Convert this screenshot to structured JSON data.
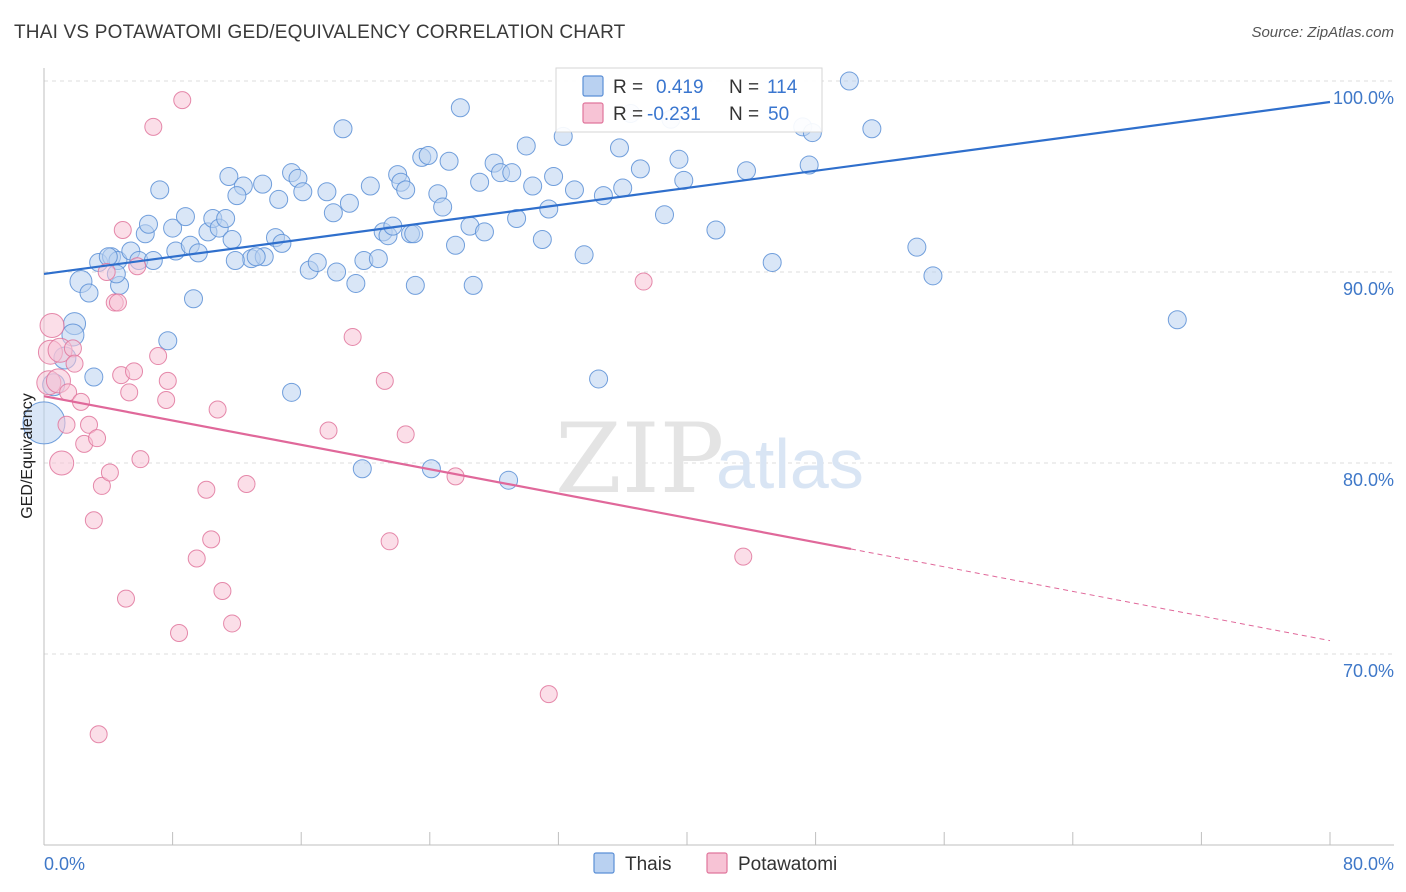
{
  "title": "THAI VS POTAWATOMI GED/EQUIVALENCY CORRELATION CHART",
  "source": "Source: ZipAtlas.com",
  "watermark": {
    "zip": "ZIP",
    "atlas": "atlas"
  },
  "legend": {
    "r_label": "R =",
    "n_label": "N =",
    "series": [
      {
        "name": "Thais",
        "r": "0.419",
        "n": "114",
        "color": "#5b8fd6",
        "fill": "#b9d1f1"
      },
      {
        "name": "Potawatomi",
        "r": "-0.231",
        "n": "50",
        "color": "#e0769c",
        "fill": "#f7c3d5"
      }
    ]
  },
  "chart_data": {
    "type": "scatter",
    "title": "THAI VS POTAWATOMI GED/EQUIVALENCY CORRELATION CHART",
    "xlabel": "",
    "ylabel": "GED/Equivalency",
    "xlim": [
      0,
      80
    ],
    "ylim": [
      60.2,
      101.5
    ],
    "x_tick_labels": [
      "0.0%",
      "80.0%"
    ],
    "y_ticks": [
      {
        "value": 100,
        "label": "100.0%"
      },
      {
        "value": 90,
        "label": "90.0%"
      },
      {
        "value": 80,
        "label": "80.0%"
      },
      {
        "value": 70,
        "label": "70.0%"
      }
    ],
    "grid": true,
    "legend_position": "top-center",
    "series": [
      {
        "name": "Thais",
        "color": "#3a76cf",
        "trend": {
          "x0": 0,
          "y0": 89.9,
          "x1": 80,
          "y1": 98.9
        },
        "points": [
          [
            0.0,
            82.1
          ],
          [
            0.6,
            84.1
          ],
          [
            1.3,
            85.5
          ],
          [
            1.9,
            87.3
          ],
          [
            1.8,
            86.7
          ],
          [
            2.3,
            89.5
          ],
          [
            2.8,
            88.9
          ],
          [
            3.1,
            84.5
          ],
          [
            3.4,
            90.5
          ],
          [
            4.2,
            90.8
          ],
          [
            4.6,
            90.6
          ],
          [
            4.7,
            89.3
          ],
          [
            4.5,
            89.9
          ],
          [
            5.4,
            91.1
          ],
          [
            5.9,
            90.6
          ],
          [
            6.3,
            92.0
          ],
          [
            6.5,
            92.5
          ],
          [
            7.2,
            94.3
          ],
          [
            7.7,
            86.4
          ],
          [
            8.0,
            92.3
          ],
          [
            8.2,
            91.1
          ],
          [
            8.8,
            92.9
          ],
          [
            9.1,
            91.4
          ],
          [
            9.3,
            88.6
          ],
          [
            9.6,
            91.0
          ],
          [
            10.2,
            92.1
          ],
          [
            10.5,
            92.8
          ],
          [
            10.9,
            92.3
          ],
          [
            11.3,
            92.8
          ],
          [
            11.5,
            95.0
          ],
          [
            11.7,
            91.7
          ],
          [
            12.4,
            94.5
          ],
          [
            12.0,
            94.0
          ],
          [
            12.9,
            90.7
          ],
          [
            13.7,
            90.8
          ],
          [
            13.6,
            94.6
          ],
          [
            14.4,
            91.8
          ],
          [
            14.8,
            91.5
          ],
          [
            14.6,
            93.8
          ],
          [
            15.4,
            95.2
          ],
          [
            15.8,
            94.9
          ],
          [
            16.1,
            94.2
          ],
          [
            16.5,
            90.1
          ],
          [
            17.0,
            90.5
          ],
          [
            17.6,
            94.2
          ],
          [
            18.0,
            93.1
          ],
          [
            18.2,
            90.0
          ],
          [
            18.6,
            97.5
          ],
          [
            19.0,
            93.6
          ],
          [
            19.4,
            89.4
          ],
          [
            19.9,
            90.6
          ],
          [
            20.3,
            94.5
          ],
          [
            20.8,
            90.7
          ],
          [
            21.1,
            92.1
          ],
          [
            21.4,
            91.9
          ],
          [
            21.7,
            92.4
          ],
          [
            22.0,
            95.1
          ],
          [
            22.2,
            94.7
          ],
          [
            22.5,
            94.3
          ],
          [
            22.8,
            92.0
          ],
          [
            23.1,
            89.3
          ],
          [
            23.5,
            96.0
          ],
          [
            23.9,
            96.1
          ],
          [
            24.5,
            94.1
          ],
          [
            24.8,
            93.4
          ],
          [
            25.2,
            95.8
          ],
          [
            25.6,
            91.4
          ],
          [
            25.9,
            98.6
          ],
          [
            26.5,
            92.4
          ],
          [
            26.7,
            89.3
          ],
          [
            27.1,
            94.7
          ],
          [
            27.4,
            92.1
          ],
          [
            28.0,
            95.7
          ],
          [
            28.4,
            95.2
          ],
          [
            29.1,
            95.2
          ],
          [
            29.4,
            92.8
          ],
          [
            30.0,
            96.6
          ],
          [
            30.4,
            94.5
          ],
          [
            31.4,
            93.3
          ],
          [
            31.0,
            91.7
          ],
          [
            31.7,
            95.0
          ],
          [
            32.3,
            97.1
          ],
          [
            33.0,
            94.3
          ],
          [
            33.6,
            90.9
          ],
          [
            34.5,
            84.4
          ],
          [
            34.8,
            94.0
          ],
          [
            35.8,
            96.5
          ],
          [
            36.0,
            94.4
          ],
          [
            36.5,
            98.3
          ],
          [
            37.1,
            95.4
          ],
          [
            38.6,
            93.0
          ],
          [
            39.0,
            98.0
          ],
          [
            39.5,
            95.9
          ],
          [
            39.8,
            94.8
          ],
          [
            41.8,
            92.2
          ],
          [
            43.7,
            95.3
          ],
          [
            45.3,
            90.5
          ],
          [
            47.2,
            97.6
          ],
          [
            47.8,
            97.3
          ],
          [
            47.6,
            95.6
          ],
          [
            50.1,
            100.0
          ],
          [
            51.5,
            97.5
          ],
          [
            54.3,
            91.3
          ],
          [
            55.3,
            89.8
          ],
          [
            70.5,
            87.5
          ],
          [
            19.8,
            79.7
          ],
          [
            24.1,
            79.7
          ],
          [
            28.9,
            79.1
          ],
          [
            15.4,
            83.7
          ],
          [
            6.8,
            90.6
          ],
          [
            11.9,
            90.6
          ],
          [
            13.2,
            90.8
          ],
          [
            4.0,
            90.8
          ],
          [
            23.0,
            92.0
          ]
        ]
      },
      {
        "name": "Potawatomi",
        "color": "#e05f8c",
        "trend": {
          "x0": 0,
          "y0": 83.5,
          "x1": 50.2,
          "y1": 75.5
        },
        "trend_dashed": {
          "x0": 50.2,
          "y0": 75.5,
          "x1": 80,
          "y1": 70.7
        },
        "points": [
          [
            0.3,
            84.2
          ],
          [
            0.5,
            87.2
          ],
          [
            0.4,
            85.8
          ],
          [
            0.9,
            84.3
          ],
          [
            1.0,
            85.9
          ],
          [
            1.1,
            80.0
          ],
          [
            1.4,
            82.0
          ],
          [
            1.5,
            83.7
          ],
          [
            1.8,
            86.0
          ],
          [
            1.9,
            85.2
          ],
          [
            2.3,
            83.2
          ],
          [
            2.5,
            81.0
          ],
          [
            2.8,
            82.0
          ],
          [
            3.1,
            77.0
          ],
          [
            3.3,
            81.3
          ],
          [
            3.4,
            65.8
          ],
          [
            3.6,
            78.8
          ],
          [
            3.9,
            90.0
          ],
          [
            4.1,
            79.5
          ],
          [
            4.4,
            88.4
          ],
          [
            4.6,
            88.4
          ],
          [
            4.8,
            84.6
          ],
          [
            4.9,
            92.2
          ],
          [
            5.1,
            72.9
          ],
          [
            5.3,
            83.7
          ],
          [
            5.6,
            84.8
          ],
          [
            5.8,
            90.3
          ],
          [
            6.0,
            80.2
          ],
          [
            6.8,
            97.6
          ],
          [
            7.1,
            85.6
          ],
          [
            7.6,
            83.3
          ],
          [
            7.7,
            84.3
          ],
          [
            8.4,
            71.1
          ],
          [
            8.6,
            99.0
          ],
          [
            9.5,
            75.0
          ],
          [
            10.1,
            78.6
          ],
          [
            10.4,
            76.0
          ],
          [
            10.8,
            82.8
          ],
          [
            11.1,
            73.3
          ],
          [
            11.7,
            71.6
          ],
          [
            12.6,
            78.9
          ],
          [
            17.7,
            81.7
          ],
          [
            19.2,
            86.6
          ],
          [
            21.2,
            84.3
          ],
          [
            21.5,
            75.9
          ],
          [
            22.5,
            81.5
          ],
          [
            25.6,
            79.3
          ],
          [
            31.4,
            67.9
          ],
          [
            37.3,
            89.5
          ],
          [
            43.5,
            75.1
          ]
        ]
      }
    ]
  }
}
